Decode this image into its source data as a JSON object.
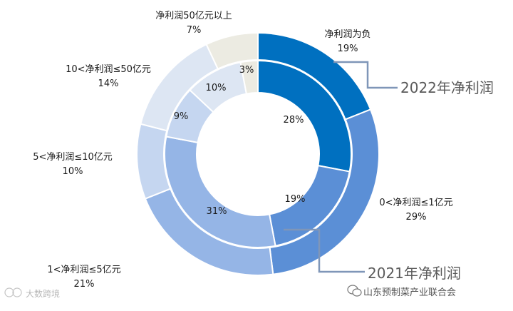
{
  "chart_data": {
    "type": "donut",
    "categories": [
      "净利润为负",
      "0<净利润≤1亿元",
      "1<净利润≤5亿元",
      "5<净利润≤10亿元",
      "10<净利润≤50亿元",
      "净利润50亿元以上"
    ],
    "series": [
      {
        "name": "2022年净利润",
        "ring": "outer",
        "values": [
          19,
          29,
          21,
          10,
          14,
          7
        ],
        "labels": [
          "19%",
          "29%",
          "21%",
          "10%",
          "14%",
          "7%"
        ]
      },
      {
        "name": "2021年净利润",
        "ring": "inner",
        "values": [
          28,
          19,
          31,
          9,
          10,
          3
        ],
        "labels": [
          "28%",
          "19%",
          "31%",
          "9%",
          "10%",
          "3%"
        ]
      }
    ],
    "colors": [
      "#0070c0",
      "#5b8fd6",
      "#95b5e6",
      "#c5d6f0",
      "#dde6f3",
      "#ecebe2"
    ],
    "legend": "callouts"
  },
  "watermark": {
    "account": "山东预制菜产业联合会",
    "faint": "大数跨境"
  }
}
